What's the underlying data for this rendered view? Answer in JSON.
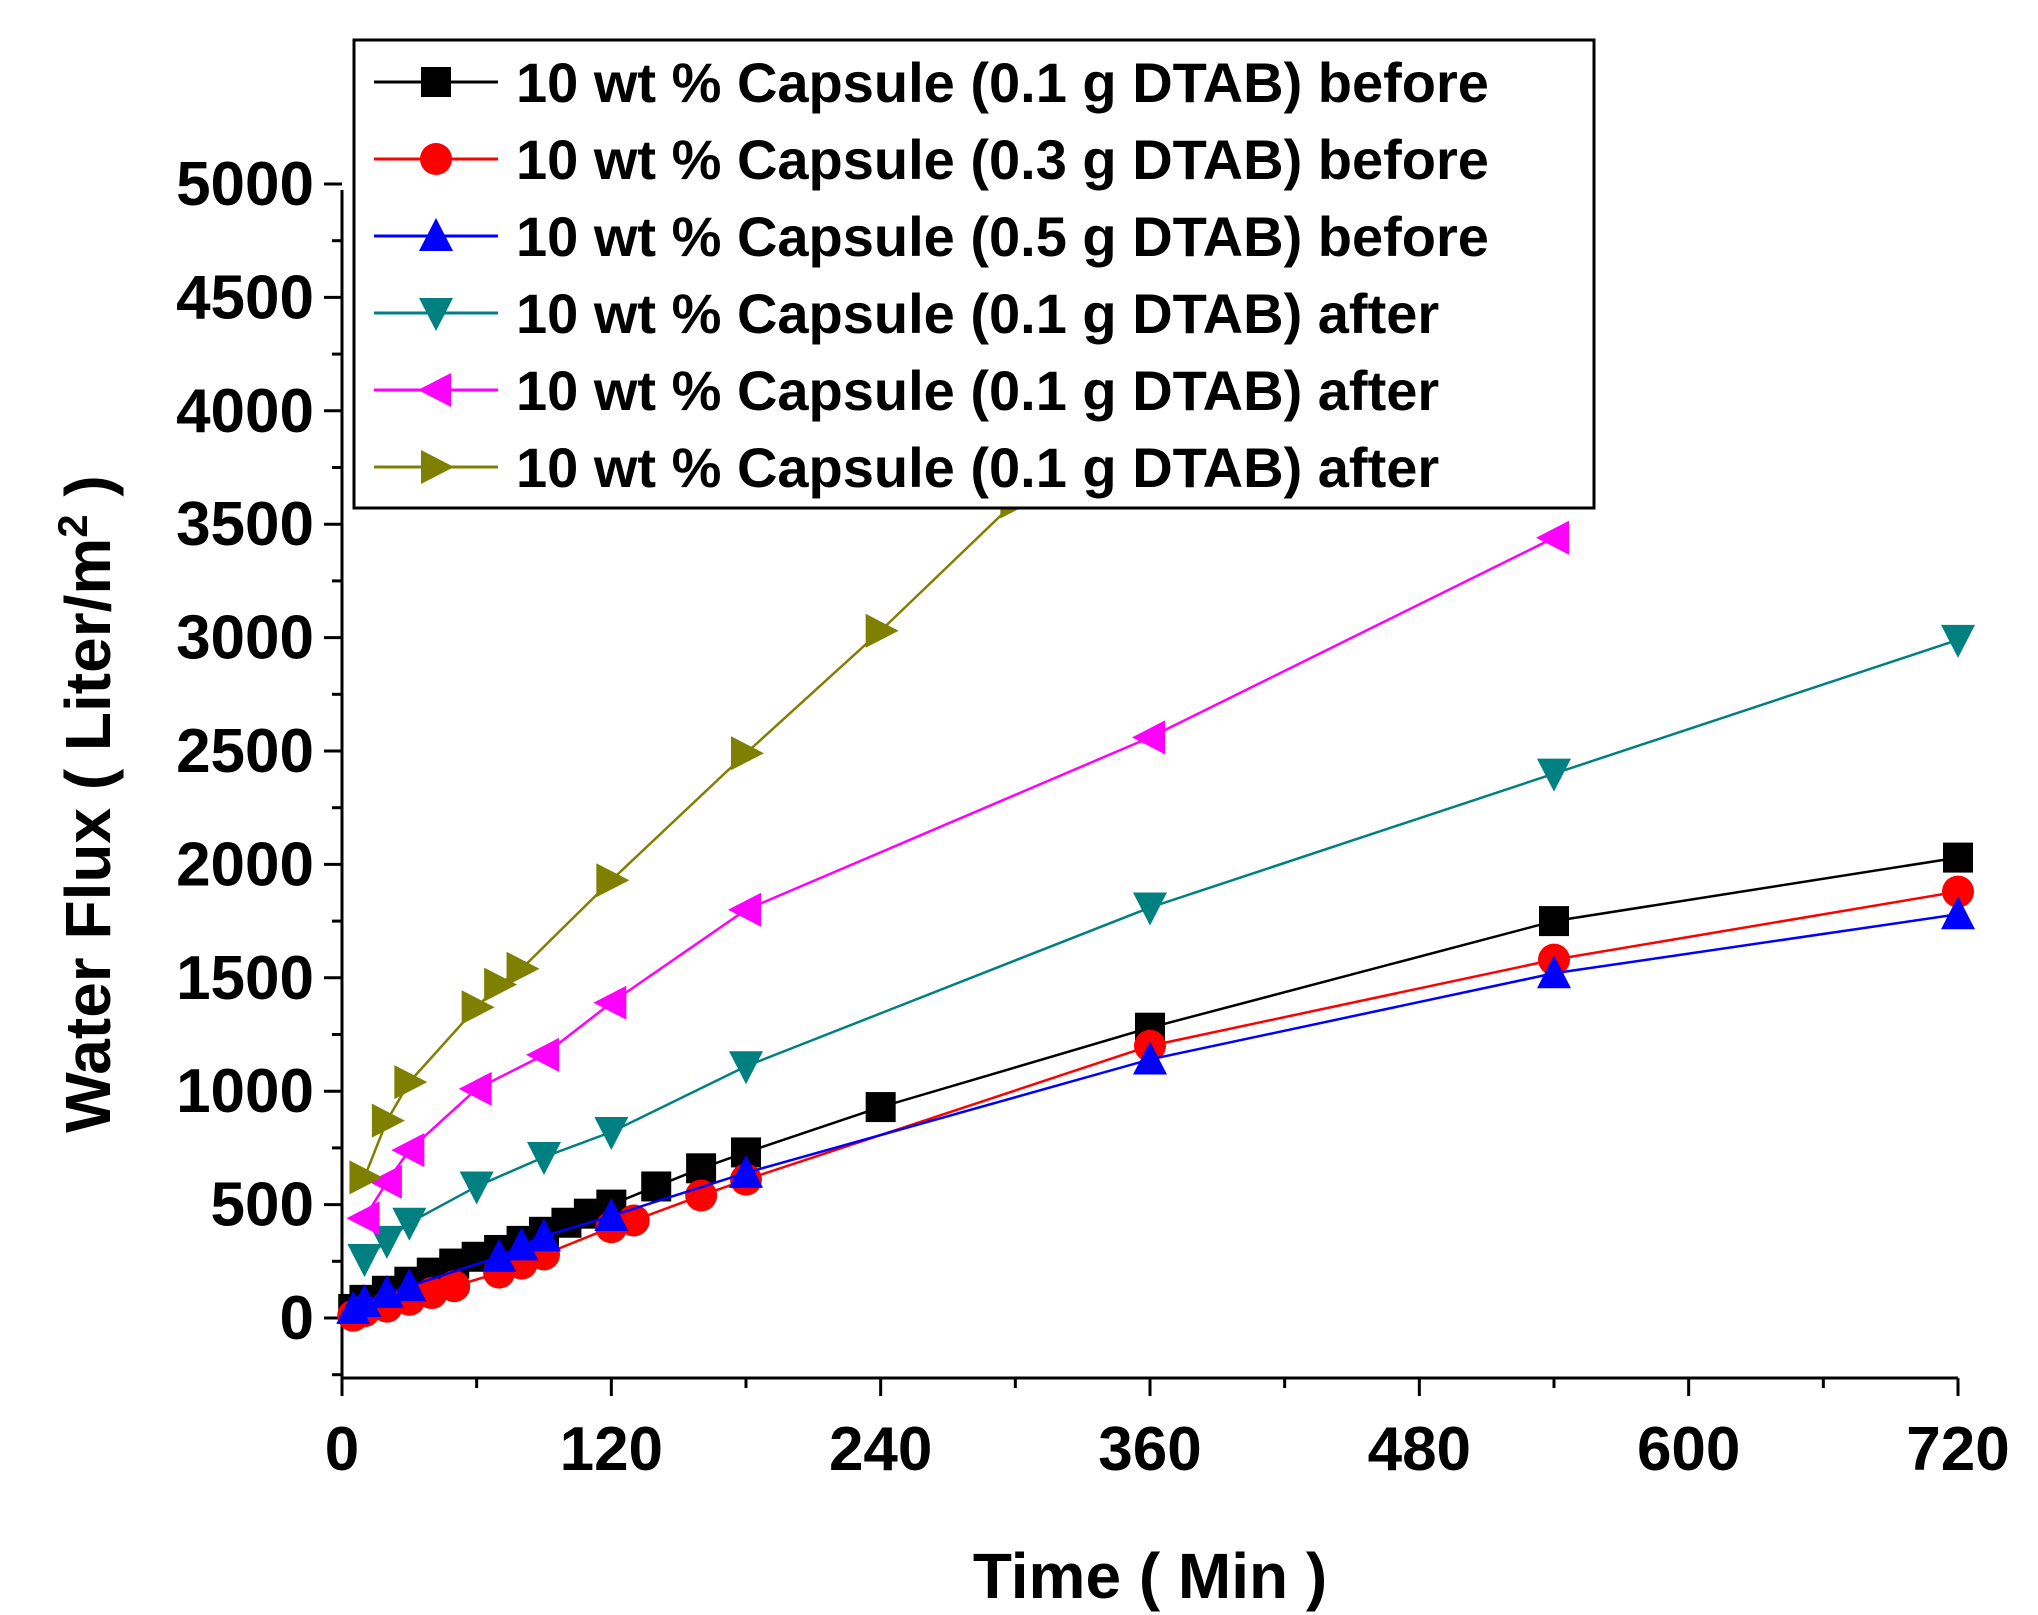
{
  "chart_data": {
    "type": "line",
    "xlabel": "Time ( Min )",
    "ylabel": "Water Flux ( Liter/m",
    "ylabel_sup": "2",
    "ylabel_end": " )",
    "xlim": [
      0,
      720
    ],
    "ylim": [
      -250,
      5100
    ],
    "xticks": [
      "0",
      "120",
      "240",
      "360",
      "480",
      "600",
      "720"
    ],
    "yticks": [
      "0",
      "500",
      "1000",
      "1500",
      "2000",
      "2500",
      "3000",
      "3500",
      "4000",
      "4500",
      "5000"
    ],
    "grid": false,
    "legend_position": "top",
    "series": [
      {
        "name": "10 wt % Capsule (0.1 g DTAB) before",
        "color": "#000000",
        "marker": "square",
        "x": [
          5,
          10,
          20,
          30,
          40,
          50,
          60,
          70,
          80,
          90,
          100,
          110,
          120,
          140,
          160,
          180,
          240,
          360,
          540,
          720
        ],
        "y": [
          40,
          80,
          120,
          160,
          200,
          240,
          270,
          300,
          340,
          380,
          420,
          460,
          500,
          580,
          660,
          730,
          930,
          1280,
          1750,
          2030
        ]
      },
      {
        "name": "10 wt % Capsule (0.3 g DTAB) before",
        "color": "#ff0000",
        "marker": "circle",
        "x": [
          5,
          10,
          20,
          30,
          40,
          50,
          70,
          80,
          90,
          120,
          130,
          160,
          180,
          360,
          540,
          720
        ],
        "y": [
          10,
          30,
          50,
          80,
          110,
          140,
          200,
          240,
          280,
          400,
          430,
          540,
          610,
          1200,
          1580,
          1880
        ]
      },
      {
        "name": "10 wt % Capsule (0.5 g DTAB) before",
        "color": "#0000ff",
        "marker": "triangle-up",
        "x": [
          5,
          10,
          20,
          30,
          70,
          80,
          90,
          120,
          180,
          360,
          540,
          720
        ],
        "y": [
          40,
          70,
          110,
          140,
          270,
          320,
          360,
          450,
          640,
          1140,
          1520,
          1780
        ]
      },
      {
        "name": "10 wt % Capsule (0.1 g DTAB) after",
        "color": "#008080",
        "marker": "triangle-down",
        "x": [
          10,
          20,
          30,
          60,
          90,
          120,
          180,
          360,
          540,
          720
        ],
        "y": [
          260,
          340,
          420,
          580,
          710,
          820,
          1110,
          1810,
          2400,
          2990
        ]
      },
      {
        "name": "10 wt % Capsule (0.1 g DTAB) after",
        "color": "#ff00ff",
        "marker": "triangle-left",
        "x": [
          10,
          20,
          30,
          60,
          90,
          120,
          180,
          360,
          540
        ],
        "y": [
          440,
          600,
          740,
          1010,
          1160,
          1390,
          1800,
          2560,
          3440
        ]
      },
      {
        "name": "10 wt % Capsule (0.1 g DTAB) after",
        "color": "#808000",
        "marker": "triangle-right",
        "x": [
          10,
          20,
          30,
          60,
          70,
          80,
          120,
          180,
          240,
          300
        ],
        "y": [
          620,
          870,
          1040,
          1370,
          1470,
          1540,
          1930,
          2490,
          3030,
          3600
        ]
      }
    ]
  }
}
